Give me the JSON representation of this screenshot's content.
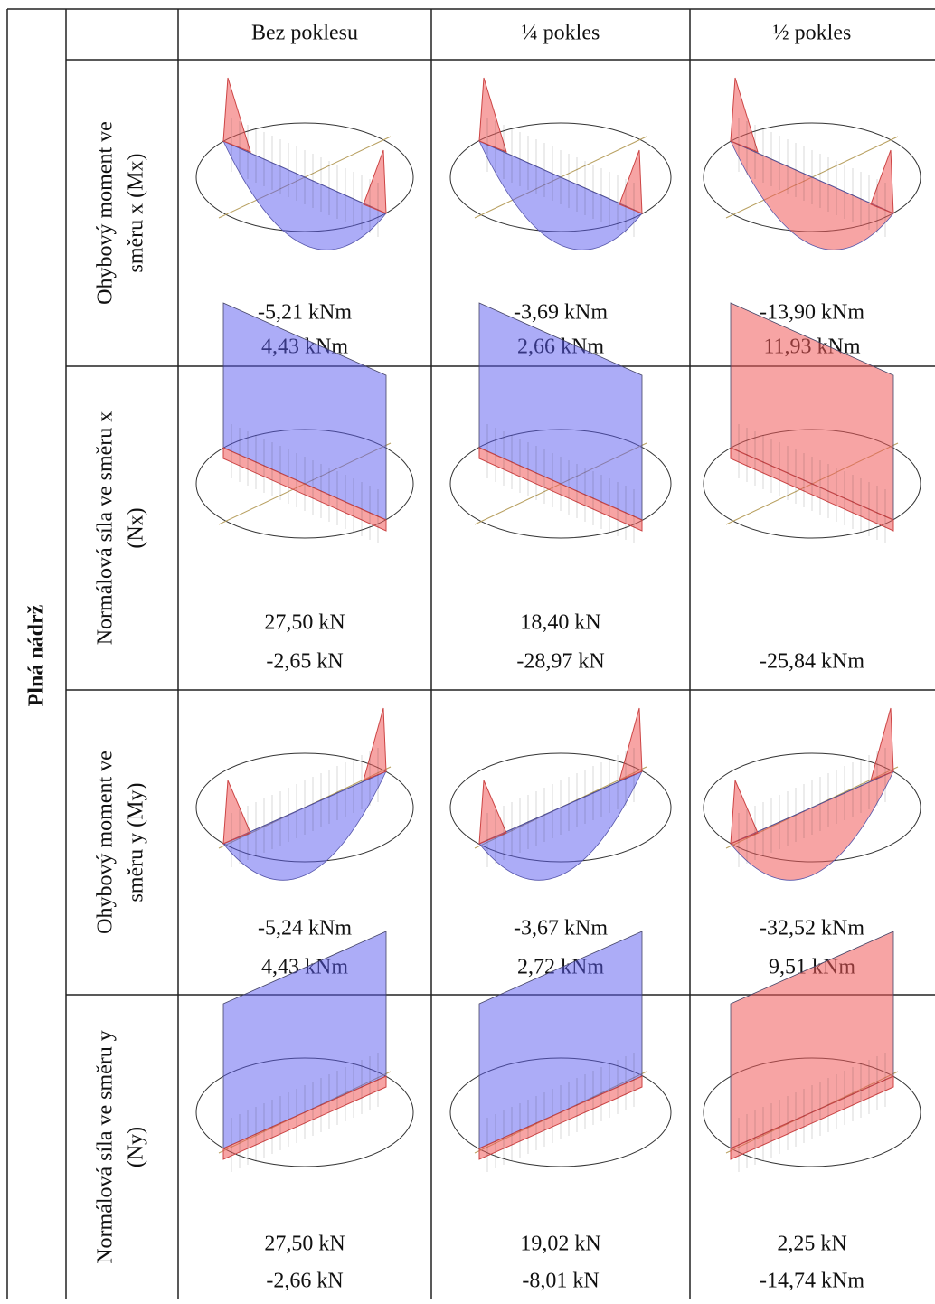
{
  "table": {
    "group": "Plná nádrž",
    "columns": [
      "Bez poklesu",
      "¼ pokles",
      "½ pokles"
    ],
    "rows": [
      {
        "label": [
          "Ohybový moment ve",
          "směru x (Mx)"
        ],
        "cells": [
          [
            "-5,21 kNm",
            "4,43 kNm"
          ],
          [
            "-3,69 kNm",
            "2,66 kNm"
          ],
          [
            "-13,90 kNm",
            "11,93 kNm"
          ]
        ]
      },
      {
        "label": [
          "Normálová síla ve směru x",
          "(Nx)"
        ],
        "cells": [
          [
            "27,50 kN",
            "-2,65 kN"
          ],
          [
            "18,40 kN",
            "-28,97 kN"
          ],
          [
            "-25,84 kNm"
          ]
        ]
      },
      {
        "label": [
          "Ohybový moment ve",
          "směru y (My)"
        ],
        "cells": [
          [
            "-5,24 kNm",
            "4,43 kNm"
          ],
          [
            "-3,67 kNm",
            "2,72 kNm"
          ],
          [
            "-32,52 kNm",
            "9,51 kNm"
          ]
        ]
      },
      {
        "label": [
          "Normálová síla ve směru y",
          "(Ny)"
        ],
        "cells": [
          [
            "27,50 kN",
            "-2,66 kN"
          ],
          [
            "19,02 kN",
            "-8,01 kN"
          ],
          [
            "2,25 kN",
            "-14,74 kNm"
          ]
        ]
      }
    ]
  }
}
